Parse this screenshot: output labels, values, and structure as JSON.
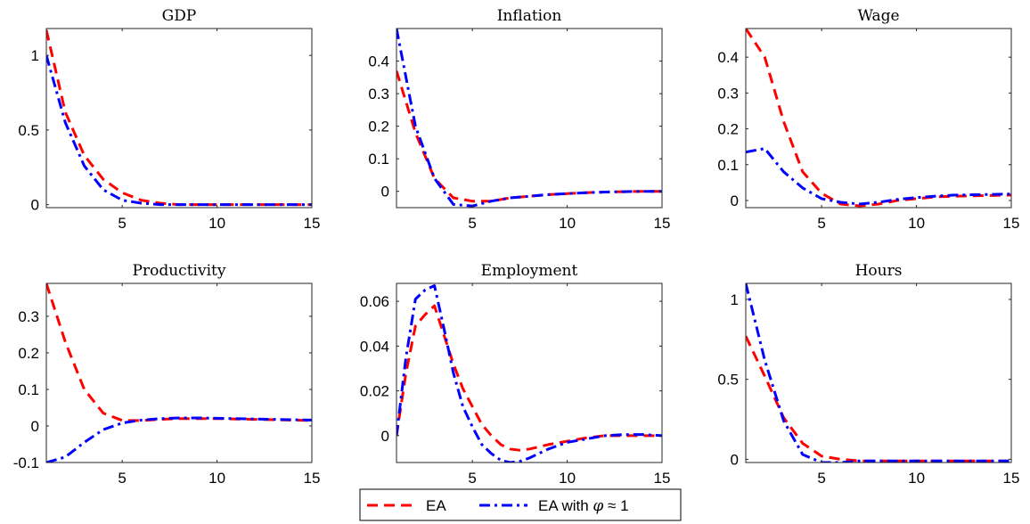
{
  "chart_data": [
    {
      "type": "line",
      "title": "GDP",
      "xlim": [
        1,
        15
      ],
      "ylim": [
        -0.02,
        1.18
      ],
      "xticks": [
        5,
        10,
        15
      ],
      "xtick_labels": [
        "5",
        "10",
        "15"
      ],
      "yticks": [
        0,
        0.5,
        1
      ],
      "ytick_labels": [
        "0",
        "0.5",
        "1"
      ],
      "x": [
        1,
        2,
        3,
        4,
        5,
        6,
        7,
        8,
        9,
        10,
        11,
        12,
        13,
        14,
        15
      ],
      "series": [
        {
          "name": "EA",
          "values": [
            1.17,
            0.62,
            0.33,
            0.17,
            0.08,
            0.03,
            0.01,
            0.0,
            0.0,
            0.0,
            0.0,
            0.0,
            0.0,
            0.0,
            0.0
          ]
        },
        {
          "name": "EA with φ ≈ 1",
          "values": [
            1.0,
            0.55,
            0.26,
            0.1,
            0.03,
            0.01,
            0.0,
            0.0,
            0.0,
            0.0,
            0.0,
            0.0,
            0.0,
            0.0,
            0.0
          ]
        }
      ]
    },
    {
      "type": "line",
      "title": "Inflation",
      "xlim": [
        1,
        15
      ],
      "ylim": [
        -0.05,
        0.5
      ],
      "xticks": [
        5,
        10,
        15
      ],
      "xtick_labels": [
        "5",
        "10",
        "15"
      ],
      "yticks": [
        0,
        0.1,
        0.2,
        0.3,
        0.4
      ],
      "ytick_labels": [
        "0",
        "0.1",
        "0.2",
        "0.3",
        "0.4"
      ],
      "x": [
        1,
        2,
        3,
        4,
        5,
        6,
        7,
        8,
        9,
        10,
        11,
        12,
        13,
        14,
        15
      ],
      "series": [
        {
          "name": "EA",
          "values": [
            0.37,
            0.18,
            0.04,
            -0.02,
            -0.03,
            -0.03,
            -0.02,
            -0.015,
            -0.01,
            -0.007,
            -0.004,
            -0.002,
            -0.001,
            0.0,
            0.0
          ]
        },
        {
          "name": "EA with φ ≈ 1",
          "values": [
            0.5,
            0.2,
            0.04,
            -0.04,
            -0.045,
            -0.03,
            -0.02,
            -0.015,
            -0.01,
            -0.007,
            -0.004,
            -0.002,
            -0.001,
            0.0,
            0.0
          ]
        }
      ]
    },
    {
      "type": "line",
      "title": "Wage",
      "xlim": [
        1,
        15
      ],
      "ylim": [
        -0.02,
        0.48
      ],
      "xticks": [
        5,
        10,
        15
      ],
      "xtick_labels": [
        "5",
        "10",
        "15"
      ],
      "yticks": [
        0,
        0.1,
        0.2,
        0.3,
        0.4
      ],
      "ytick_labels": [
        "0",
        "0.1",
        "0.2",
        "0.3",
        "0.4"
      ],
      "x": [
        1,
        2,
        3,
        4,
        5,
        6,
        7,
        8,
        9,
        10,
        11,
        12,
        13,
        14,
        15
      ],
      "series": [
        {
          "name": "EA",
          "values": [
            0.48,
            0.4,
            0.22,
            0.08,
            0.02,
            -0.01,
            -0.015,
            -0.01,
            0.0,
            0.005,
            0.01,
            0.012,
            0.013,
            0.014,
            0.015
          ]
        },
        {
          "name": "EA with φ ≈ 1",
          "values": [
            0.135,
            0.145,
            0.08,
            0.035,
            0.005,
            -0.005,
            -0.01,
            -0.005,
            0.003,
            0.008,
            0.012,
            0.015,
            0.016,
            0.017,
            0.018
          ]
        }
      ]
    },
    {
      "type": "line",
      "title": "Productivity",
      "xlim": [
        1,
        15
      ],
      "ylim": [
        -0.1,
        0.39
      ],
      "xticks": [
        5,
        10,
        15
      ],
      "xtick_labels": [
        "5",
        "10",
        "15"
      ],
      "yticks": [
        -0.1,
        0,
        0.1,
        0.2,
        0.3
      ],
      "ytick_labels": [
        "-0.1",
        "0",
        "0.1",
        "0.2",
        "0.3"
      ],
      "x": [
        1,
        2,
        3,
        4,
        5,
        6,
        7,
        8,
        9,
        10,
        11,
        12,
        13,
        14,
        15
      ],
      "series": [
        {
          "name": "EA",
          "values": [
            0.39,
            0.23,
            0.1,
            0.035,
            0.015,
            0.015,
            0.018,
            0.02,
            0.02,
            0.02,
            0.019,
            0.018,
            0.017,
            0.016,
            0.015
          ]
        },
        {
          "name": "EA with φ ≈ 1",
          "values": [
            -0.1,
            -0.085,
            -0.045,
            -0.01,
            0.008,
            0.016,
            0.02,
            0.022,
            0.022,
            0.021,
            0.02,
            0.019,
            0.018,
            0.017,
            0.016
          ]
        }
      ]
    },
    {
      "type": "line",
      "title": "Employment",
      "xlim": [
        1,
        15
      ],
      "ylim": [
        -0.012,
        0.068
      ],
      "xticks": [
        5,
        10,
        15
      ],
      "xtick_labels": [
        "5",
        "10",
        "15"
      ],
      "yticks": [
        0,
        0.02,
        0.04,
        0.06
      ],
      "ytick_labels": [
        "0",
        "0.02",
        "0.04",
        "0.06"
      ],
      "x": [
        1,
        1.5,
        2,
        2.5,
        3,
        3.5,
        4,
        4.5,
        5,
        5.5,
        6,
        6.5,
        7,
        7.5,
        8,
        8.5,
        9,
        10,
        11,
        12,
        13,
        14,
        15
      ],
      "series": [
        {
          "name": "EA",
          "values": [
            0,
            0.028,
            0.049,
            0.054,
            0.058,
            0.045,
            0.032,
            0.021,
            0.013,
            0.005,
            0.0,
            -0.004,
            -0.006,
            -0.0065,
            -0.006,
            -0.005,
            -0.004,
            -0.0025,
            -0.001,
            0.0,
            0.0,
            0.0,
            0.0
          ]
        },
        {
          "name": "EA with φ ≈ 1",
          "values": [
            0,
            0.035,
            0.061,
            0.065,
            0.067,
            0.048,
            0.028,
            0.013,
            0.004,
            -0.004,
            -0.008,
            -0.011,
            -0.012,
            -0.0115,
            -0.01,
            -0.008,
            -0.006,
            -0.003,
            -0.0015,
            0.0,
            0.0005,
            0.0005,
            0.0
          ]
        }
      ]
    },
    {
      "type": "line",
      "title": "Hours",
      "xlim": [
        1,
        15
      ],
      "ylim": [
        -0.02,
        1.1
      ],
      "xticks": [
        5,
        10,
        15
      ],
      "xtick_labels": [
        "5",
        "10",
        "15"
      ],
      "yticks": [
        0,
        0.5,
        1
      ],
      "ytick_labels": [
        "0",
        "0.5",
        "1"
      ],
      "x": [
        1,
        2,
        3,
        4,
        5,
        6,
        7,
        8,
        9,
        10,
        11,
        12,
        13,
        14,
        15
      ],
      "series": [
        {
          "name": "EA",
          "values": [
            0.77,
            0.52,
            0.26,
            0.1,
            0.02,
            0.0,
            -0.01,
            -0.01,
            -0.01,
            -0.01,
            -0.01,
            -0.01,
            -0.01,
            -0.01,
            -0.01
          ]
        },
        {
          "name": "EA with φ ≈ 1",
          "values": [
            1.1,
            0.62,
            0.24,
            0.03,
            -0.02,
            -0.02,
            -0.01,
            -0.01,
            -0.01,
            -0.01,
            -0.01,
            -0.01,
            -0.01,
            -0.01,
            -0.01
          ]
        }
      ]
    }
  ],
  "legend": {
    "items": [
      {
        "label": "EA",
        "style": "dashed"
      },
      {
        "label_prefix": "EA with ",
        "symbol": "φ",
        "label_suffix": " ≈ 1",
        "style": "dashdot"
      }
    ]
  },
  "colors": {
    "ea": "#ff0000",
    "ea_phi": "#0000ff",
    "axes": "#262626"
  }
}
